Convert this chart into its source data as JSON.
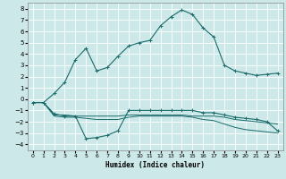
{
  "xlabel": "Humidex (Indice chaleur)",
  "bg_color": "#cce8e8",
  "grid_color": "#ffffff",
  "line_color": "#1a6b6b",
  "xlim": [
    -0.5,
    23.5
  ],
  "ylim": [
    -4.5,
    8.5
  ],
  "xticks": [
    0,
    1,
    2,
    3,
    4,
    5,
    6,
    7,
    8,
    9,
    10,
    11,
    12,
    13,
    14,
    15,
    16,
    17,
    18,
    19,
    20,
    21,
    22,
    23
  ],
  "yticks": [
    -4,
    -3,
    -2,
    -1,
    0,
    1,
    2,
    3,
    4,
    5,
    6,
    7,
    8
  ],
  "line1_x": [
    0,
    1,
    2,
    3,
    4,
    5,
    6,
    7,
    8,
    9,
    10,
    11,
    12,
    13,
    14,
    15,
    16,
    17,
    18,
    19,
    20,
    21,
    22,
    23
  ],
  "line1_y": [
    -0.3,
    -0.3,
    0.5,
    1.5,
    3.5,
    4.5,
    2.5,
    2.8,
    3.8,
    4.7,
    5.0,
    5.2,
    6.5,
    7.3,
    7.9,
    7.5,
    6.3,
    5.5,
    3.0,
    2.5,
    2.3,
    2.1,
    2.2,
    2.3
  ],
  "line2_x": [
    0,
    1,
    2,
    3,
    4,
    5,
    6,
    7,
    8,
    9,
    10,
    11,
    12,
    13,
    14,
    15,
    16,
    17,
    18,
    19,
    20,
    21,
    22,
    23
  ],
  "line2_y": [
    -0.3,
    -0.3,
    -1.3,
    -1.5,
    -1.5,
    -3.5,
    -3.4,
    -3.2,
    -2.8,
    -1.0,
    -1.0,
    -1.0,
    -1.0,
    -1.0,
    -1.0,
    -1.0,
    -1.2,
    -1.2,
    -1.4,
    -1.6,
    -1.7,
    -1.8,
    -2.0,
    -2.8
  ],
  "line3_x": [
    0,
    1,
    2,
    3,
    4,
    5,
    6,
    7,
    8,
    9,
    10,
    11,
    12,
    13,
    14,
    15,
    16,
    17,
    18,
    19,
    20,
    21,
    22,
    23
  ],
  "line3_y": [
    -0.3,
    -0.3,
    -1.4,
    -1.4,
    -1.5,
    -1.5,
    -1.5,
    -1.5,
    -1.5,
    -1.4,
    -1.4,
    -1.4,
    -1.4,
    -1.4,
    -1.4,
    -1.5,
    -1.5,
    -1.5,
    -1.6,
    -1.8,
    -1.9,
    -2.0,
    -2.1,
    -2.2
  ],
  "line4_x": [
    0,
    1,
    2,
    3,
    4,
    5,
    6,
    7,
    8,
    9,
    10,
    11,
    12,
    13,
    14,
    15,
    16,
    17,
    18,
    19,
    20,
    21,
    22,
    23
  ],
  "line4_y": [
    -0.3,
    -0.3,
    -1.5,
    -1.6,
    -1.6,
    -1.7,
    -1.8,
    -1.8,
    -1.8,
    -1.6,
    -1.5,
    -1.5,
    -1.5,
    -1.5,
    -1.5,
    -1.6,
    -1.8,
    -1.9,
    -2.2,
    -2.5,
    -2.7,
    -2.8,
    -2.9,
    -3.0
  ]
}
